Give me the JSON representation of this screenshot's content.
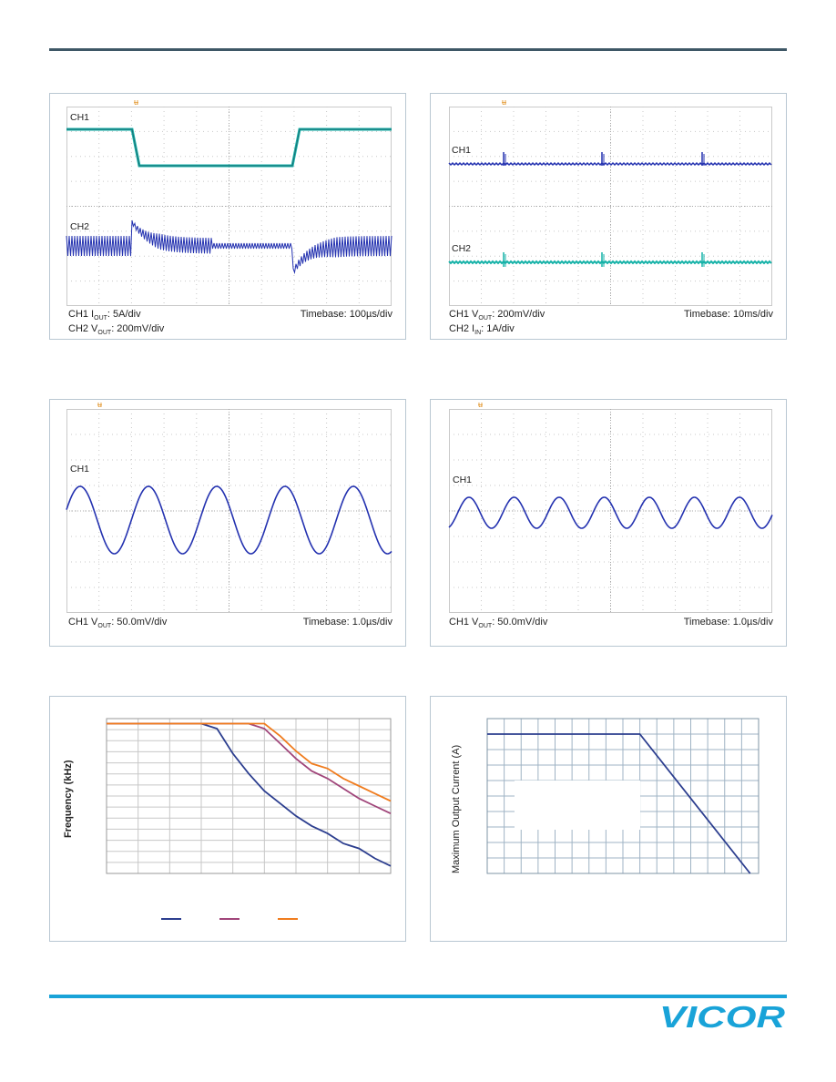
{
  "brand": {
    "logo_text": "VICOR",
    "accent": "#19a3d8",
    "rule": "#3e5766"
  },
  "scope1": {
    "ch1": "CH1",
    "ch2": "CH2",
    "cap1_pre": "CH1 I",
    "cap1_sub": "OUT",
    "cap1_post": ": 5A/div",
    "cap2_pre": "CH2 V",
    "cap2_sub": "OUT",
    "cap2_post": ": 200mV/div",
    "timebase": "Timebase: 100µs/div"
  },
  "scope2": {
    "ch1": "CH1",
    "ch2": "CH2",
    "cap1_pre": "CH1 V",
    "cap1_sub": "OUT",
    "cap1_post": ": 200mV/div",
    "cap2_pre": "CH2 I",
    "cap2_sub": "IN",
    "cap2_post": ": 1A/div",
    "timebase": "Timebase: 10ms/div"
  },
  "scope3": {
    "ch1": "CH1",
    "cap1_pre": "CH1 V",
    "cap1_sub": "OUT",
    "cap1_post": ": 50.0mV/div",
    "timebase": "Timebase: 1.0µs/div"
  },
  "scope4": {
    "ch1": "CH1",
    "cap1_pre": "CH1 V",
    "cap1_sub": "OUT",
    "cap1_post": ": 50.0mV/div",
    "timebase": "Timebase: 1.0µs/div"
  },
  "chart_data": [
    {
      "type": "line",
      "title": "",
      "xlabel": "",
      "ylabel": "Frequency (kHz)",
      "x": [
        0,
        1,
        2,
        3,
        4,
        5,
        6,
        7,
        8,
        9,
        10,
        11,
        12,
        13,
        14,
        15,
        16,
        17,
        18
      ],
      "series": [
        {
          "color": "#2c3e8f",
          "values": [
            100,
            100,
            100,
            100,
            100,
            100,
            100,
            98,
            88,
            80,
            73,
            68,
            63,
            59,
            56,
            52,
            50,
            46,
            43
          ]
        },
        {
          "color": "#a0457a",
          "values": [
            100,
            100,
            100,
            100,
            100,
            100,
            100,
            100,
            100,
            100,
            98,
            92,
            86,
            81,
            78,
            74,
            70,
            67,
            64
          ]
        },
        {
          "color": "#f07c1e",
          "values": [
            100,
            100,
            100,
            100,
            100,
            100,
            100,
            100,
            100,
            100,
            100,
            95,
            89,
            84,
            82,
            78,
            75,
            72,
            69
          ]
        }
      ],
      "ylim": [
        40,
        102
      ],
      "grid": true,
      "legend": "bottom"
    },
    {
      "type": "line",
      "title": "",
      "xlabel": "",
      "ylabel": "Maximum Output Current (A)",
      "x": [
        0,
        9,
        15.5
      ],
      "series": [
        {
          "color": "#2c3e8f",
          "values": [
            9,
            9,
            0
          ]
        }
      ],
      "xlim": [
        0,
        16
      ],
      "ylim": [
        0,
        10
      ],
      "grid": true
    }
  ]
}
